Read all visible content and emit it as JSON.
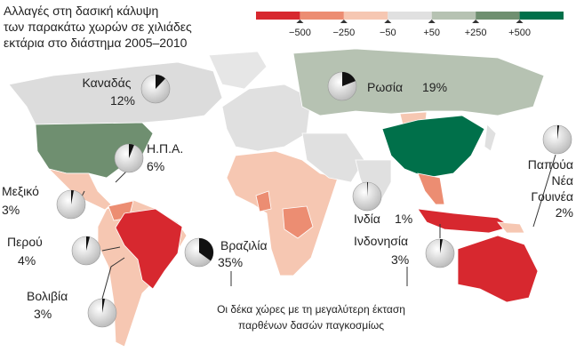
{
  "title": [
    "Αλλαγές στη δασική κάλυψη",
    "των παρακάτω χωρών σε χιλιάδες",
    "εκτάρια στο διάστημα 2005–2010"
  ],
  "legend": {
    "colors": [
      "#d7282f",
      "#ec8d72",
      "#f6c7b2",
      "#e0e0e0",
      "#b6c2b2",
      "#6f8f70",
      "#00704a"
    ],
    "ticks": [
      {
        "value": -500,
        "label": "−500"
      },
      {
        "value": -250,
        "label": "−250"
      },
      {
        "value": -50,
        "label": "−50"
      },
      {
        "value": 50,
        "label": "+50"
      },
      {
        "value": 250,
        "label": "+250"
      },
      {
        "value": 500,
        "label": "+500"
      }
    ]
  },
  "countries": [
    {
      "name": "Καναδάς",
      "share": 12,
      "share_label": "12%"
    },
    {
      "name": "Η.Π.Α.",
      "share": 6,
      "share_label": "6%"
    },
    {
      "name": "Μεξικό",
      "share": 3,
      "share_label": "3%"
    },
    {
      "name": "Περού",
      "share": 4,
      "share_label": "4%"
    },
    {
      "name": "Βολιβία",
      "share": 3,
      "share_label": "3%"
    },
    {
      "name": "Βραζιλία",
      "share": 35,
      "share_label": "35%"
    },
    {
      "name": "Ρωσία",
      "share": 19,
      "share_label": "19%"
    },
    {
      "name": "Ινδία",
      "share": 1,
      "share_label": "1%"
    },
    {
      "name": "Ινδονησία",
      "share": 3,
      "share_label": "3%"
    },
    {
      "name": [
        "Παπούα",
        "Νέα",
        "Γουινέα"
      ],
      "share": 2,
      "share_label": "2%"
    }
  ],
  "note": [
    "Οι δέκα χώρες με τη μεγαλύτερη έκταση",
    "παρθένων δασών παγκοσμίως"
  ]
}
